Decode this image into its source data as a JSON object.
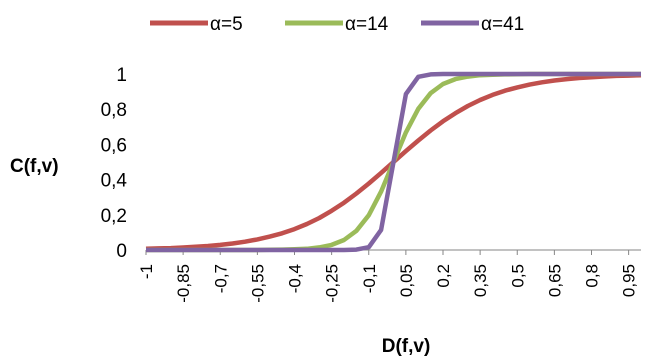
{
  "chart_data": {
    "type": "line",
    "xlabel": "D(f,v)",
    "ylabel": "C(f,v)",
    "ylim": [
      0,
      1
    ],
    "xlim": [
      -1,
      1
    ],
    "yticks": [
      "0",
      "0,2",
      "0,4",
      "0,6",
      "0,8",
      "1"
    ],
    "xticks": [
      "-1",
      "-0,85",
      "-0,7",
      "-0,55",
      "-0,4",
      "-0,25",
      "-0,1",
      "0,05",
      "0,2",
      "0,35",
      "0,5",
      "0,65",
      "0,8",
      "0,95"
    ],
    "grid": false,
    "legend_position": "top",
    "series": [
      {
        "name": "α=5",
        "color": "#C0504D",
        "x": [
          -1,
          -0.95,
          -0.9,
          -0.85,
          -0.8,
          -0.75,
          -0.7,
          -0.65,
          -0.6,
          -0.55,
          -0.5,
          -0.45,
          -0.4,
          -0.35,
          -0.3,
          -0.25,
          -0.2,
          -0.15,
          -0.1,
          -0.05,
          0,
          0.05,
          0.1,
          0.15,
          0.2,
          0.25,
          0.3,
          0.35,
          0.4,
          0.45,
          0.5,
          0.55,
          0.6,
          0.65,
          0.7,
          0.75,
          0.8,
          0.85,
          0.9,
          0.95,
          1
        ],
        "values": [
          0.007,
          0.009,
          0.011,
          0.014,
          0.018,
          0.023,
          0.029,
          0.037,
          0.047,
          0.06,
          0.076,
          0.095,
          0.119,
          0.148,
          0.182,
          0.223,
          0.269,
          0.321,
          0.378,
          0.438,
          0.5,
          0.562,
          0.622,
          0.679,
          0.731,
          0.777,
          0.818,
          0.852,
          0.881,
          0.905,
          0.924,
          0.94,
          0.953,
          0.963,
          0.971,
          0.977,
          0.982,
          0.986,
          0.989,
          0.991,
          0.993
        ]
      },
      {
        "name": "α=14",
        "color": "#9BBB59",
        "x": [
          -1,
          -0.95,
          -0.9,
          -0.85,
          -0.8,
          -0.75,
          -0.7,
          -0.65,
          -0.6,
          -0.55,
          -0.5,
          -0.45,
          -0.4,
          -0.35,
          -0.3,
          -0.25,
          -0.2,
          -0.15,
          -0.1,
          -0.05,
          0,
          0.05,
          0.1,
          0.15,
          0.2,
          0.25,
          0.3,
          0.35,
          0.4,
          0.45,
          0.5,
          0.55,
          0.6,
          0.65,
          0.7,
          0.75,
          0.8,
          0.85,
          0.9,
          0.95,
          1
        ],
        "values": [
          0,
          0,
          0,
          0,
          0,
          0,
          0,
          0,
          0,
          0,
          0.001,
          0.002,
          0.004,
          0.007,
          0.015,
          0.029,
          0.057,
          0.109,
          0.198,
          0.332,
          0.5,
          0.668,
          0.802,
          0.891,
          0.943,
          0.971,
          0.985,
          0.993,
          0.996,
          0.998,
          0.999,
          1,
          1,
          1,
          1,
          1,
          1,
          1,
          1,
          1,
          1
        ]
      },
      {
        "name": "α=41",
        "color": "#8064A2",
        "x": [
          -1,
          -0.95,
          -0.9,
          -0.85,
          -0.8,
          -0.75,
          -0.7,
          -0.65,
          -0.6,
          -0.55,
          -0.5,
          -0.45,
          -0.4,
          -0.35,
          -0.3,
          -0.25,
          -0.2,
          -0.15,
          -0.1,
          -0.05,
          0,
          0.05,
          0.1,
          0.15,
          0.2,
          0.25,
          0.3,
          0.35,
          0.4,
          0.45,
          0.5,
          0.55,
          0.6,
          0.65,
          0.7,
          0.75,
          0.8,
          0.85,
          0.9,
          0.95,
          1
        ],
        "values": [
          0,
          0,
          0,
          0,
          0,
          0,
          0,
          0,
          0,
          0,
          0,
          0,
          0,
          0,
          0,
          0,
          0,
          0.002,
          0.016,
          0.114,
          0.5,
          0.886,
          0.984,
          0.998,
          1,
          1,
          1,
          1,
          1,
          1,
          1,
          1,
          1,
          1,
          1,
          1,
          1,
          1,
          1,
          1,
          1
        ]
      }
    ]
  }
}
